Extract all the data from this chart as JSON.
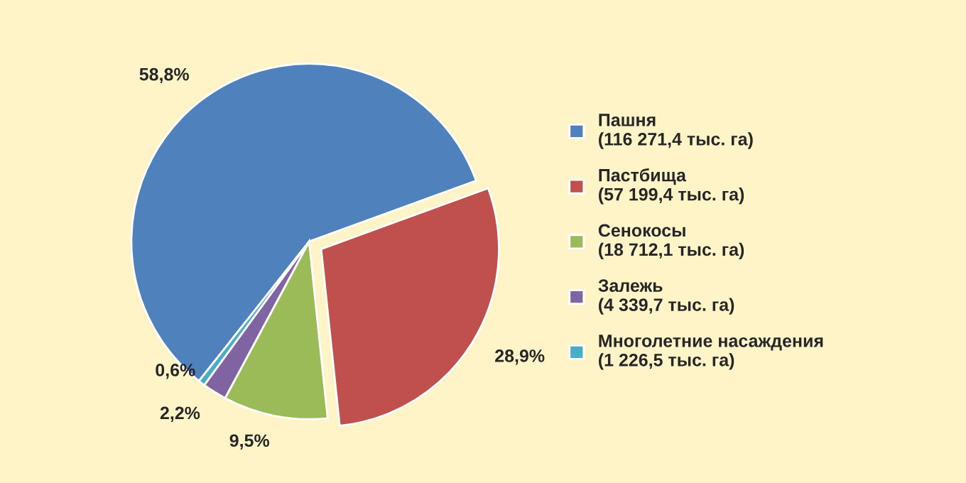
{
  "chart_data": {
    "type": "pie",
    "categories": [
      "Пашня\n(116 271,4 тыс. га)",
      "Пастбища\n(57 199,4 тыс. га)",
      "Сенокосы\n(18 712,1 тыс. га)",
      "Залежь\n(4 339,7 тыс. га)",
      "Многолетние насаждения\n(1 226,5 тыс. га)"
    ],
    "values": [
      58.8,
      28.9,
      9.5,
      2.2,
      0.6
    ],
    "value_labels": [
      "58,8%",
      "28,9%",
      "9,5%",
      "2,2%",
      "0,6%"
    ],
    "colors": [
      "#4f81bd",
      "#c0504d",
      "#9bbb59",
      "#8064a2",
      "#4bacc6"
    ],
    "legend": "right"
  }
}
